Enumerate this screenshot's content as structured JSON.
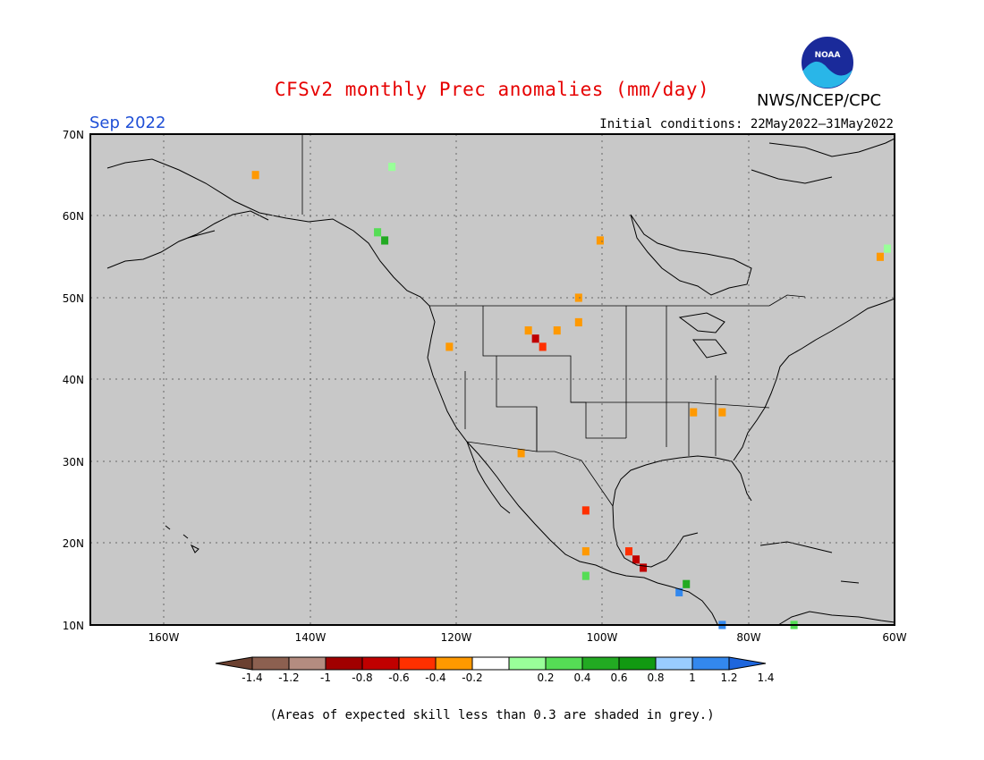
{
  "header": {
    "title": "CFSv2 monthly Prec anomalies (mm/day)",
    "agency": "NWS/NCEP/CPC",
    "month": "Sep 2022",
    "initial_conditions": "Initial conditions: 22May2022–31May2022",
    "logo_text": "NOAA"
  },
  "map": {
    "projection": "latitude-longitude",
    "lon_range": [
      -172,
      -60
    ],
    "lat_range": [
      10,
      70
    ],
    "background_color": "#c8c8c8",
    "grid": "dotted",
    "lat_ticks": [
      "70N",
      "60N",
      "50N",
      "40N",
      "30N",
      "20N",
      "10N"
    ],
    "lon_ticks": [
      "160W",
      "140W",
      "120W",
      "100W",
      "80W",
      "60W"
    ]
  },
  "colorbar": {
    "levels": [
      "-1.4",
      "-1.2",
      "-1",
      "-0.8",
      "-0.6",
      "-0.4",
      "-0.2",
      "0.2",
      "0.4",
      "0.6",
      "0.8",
      "1",
      "1.2",
      "1.4"
    ],
    "colors": [
      "#6b4030",
      "#8c6050",
      "#b48c80",
      "#a00000",
      "#c00000",
      "#ff3000",
      "#ff9900",
      "#ffffff",
      "#99ff99",
      "#55dd55",
      "#22aa22",
      "#119911",
      "#99ccff",
      "#3388ee",
      "#1e66dd"
    ]
  },
  "footnote": "(Areas of expected skill less than 0.3 are shaded in grey.)",
  "chart_data": {
    "type": "heatmap",
    "variable": "Prec anomalies (mm/day)",
    "cells": [
      {
        "lon": -110,
        "lat": 45,
        "value": -0.7
      },
      {
        "lon": -109,
        "lat": 44,
        "value": -0.5
      },
      {
        "lon": -111,
        "lat": 46,
        "value": -0.3
      },
      {
        "lon": -107,
        "lat": 46,
        "value": -0.3
      },
      {
        "lon": -104,
        "lat": 47,
        "value": -0.3
      },
      {
        "lon": -104,
        "lat": 50,
        "value": -0.3
      },
      {
        "lon": -101,
        "lat": 57,
        "value": -0.3
      },
      {
        "lon": -149,
        "lat": 65,
        "value": -0.3
      },
      {
        "lon": -122,
        "lat": 44,
        "value": -0.3
      },
      {
        "lon": -112,
        "lat": 31,
        "value": -0.3
      },
      {
        "lon": -103,
        "lat": 24,
        "value": -0.5
      },
      {
        "lon": -96,
        "lat": 18,
        "value": -0.8
      },
      {
        "lon": -97,
        "lat": 19,
        "value": -0.6
      },
      {
        "lon": -95,
        "lat": 17,
        "value": -0.8
      },
      {
        "lon": -103,
        "lat": 19,
        "value": -0.3
      },
      {
        "lon": -88,
        "lat": 36,
        "value": -0.3
      },
      {
        "lon": -84,
        "lat": 36,
        "value": -0.3
      },
      {
        "lon": -62,
        "lat": 55,
        "value": -0.3
      },
      {
        "lon": -132,
        "lat": 58,
        "value": 0.4
      },
      {
        "lon": -131,
        "lat": 57,
        "value": 0.6
      },
      {
        "lon": -130,
        "lat": 66,
        "value": 0.3
      },
      {
        "lon": -103,
        "lat": 16,
        "value": 0.4
      },
      {
        "lon": -89,
        "lat": 15,
        "value": 0.7
      },
      {
        "lon": -90,
        "lat": 14,
        "value": 1.3
      },
      {
        "lon": -84,
        "lat": 10,
        "value": 1.2
      },
      {
        "lon": -74,
        "lat": 10,
        "value": 0.4
      },
      {
        "lon": -61,
        "lat": 56,
        "value": 0.3
      }
    ]
  }
}
